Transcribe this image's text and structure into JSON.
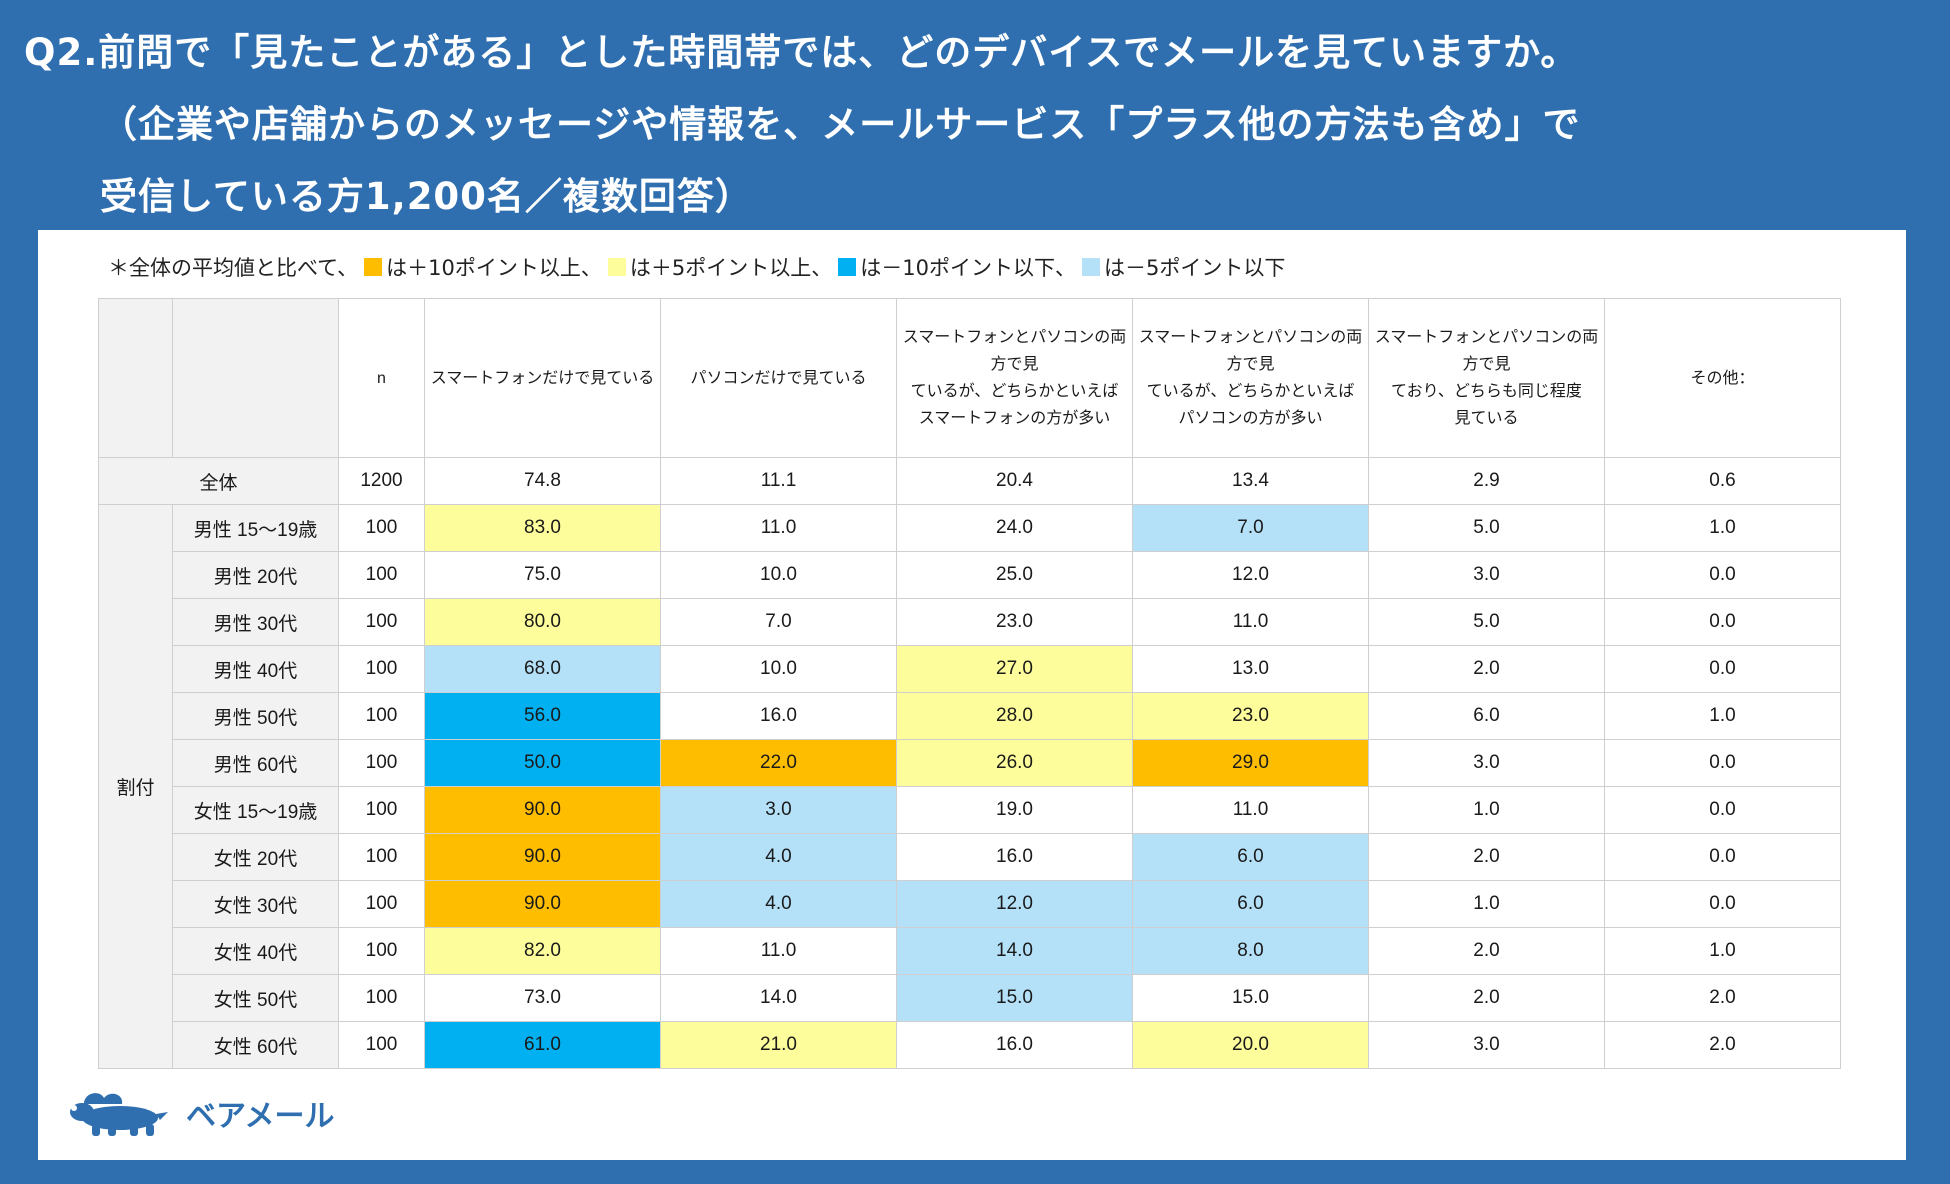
{
  "title": {
    "line1": "Q2.前問で「見たことがある」とした時間帯では、どのデバイスでメールを見ていますか。",
    "line2": "（企業や店舗からのメッセージや情報を、メールサービス「プラス他の方法も含め」で",
    "line3": "受信している方1,200名／複数回答）"
  },
  "legend": {
    "prefix": "＊全体の平均値と比べて、",
    "orange": "は＋10ポイント以上、",
    "yellow": "は＋5ポイント以上、",
    "blue": "は－10ポイント以下、",
    "lightblue": "は－5ポイント以下"
  },
  "colors": {
    "orange": "#ffbd00",
    "yellow": "#fefd9c",
    "blue": "#00b0f0",
    "lightblue": "#b4e0f8",
    "frame": "#2f6fb0"
  },
  "chart_data": {
    "type": "table",
    "columns": [
      {
        "lines": [
          "n"
        ]
      },
      {
        "lines": [
          "スマートフォンだけで見ている"
        ]
      },
      {
        "lines": [
          "パソコンだけで見ている"
        ]
      },
      {
        "lines": [
          "スマートフォンとパソコンの両方で見",
          "ているが、どちらかといえば",
          "スマートフォンの方が多い"
        ]
      },
      {
        "lines": [
          "スマートフォンとパソコンの両方で見",
          "ているが、どちらかといえば",
          "パソコンの方が多い"
        ]
      },
      {
        "lines": [
          "スマートフォンとパソコンの両方で見",
          "ており、どちらも同じ程度",
          "見ている"
        ]
      },
      {
        "lines": [
          "その他："
        ]
      }
    ],
    "total": {
      "label": "全体",
      "n": "1200",
      "values": [
        "74.8",
        "11.1",
        "20.4",
        "13.4",
        "2.9",
        "0.6"
      ]
    },
    "group_label": "割付",
    "rows": [
      {
        "label": "男性 15～19歳",
        "n": "100",
        "values": [
          "83.0",
          "11.0",
          "24.0",
          "7.0",
          "5.0",
          "1.0"
        ],
        "colors": [
          "yellow",
          "",
          "",
          "lightblue",
          "",
          ""
        ]
      },
      {
        "label": "男性 20代",
        "n": "100",
        "values": [
          "75.0",
          "10.0",
          "25.0",
          "12.0",
          "3.0",
          "0.0"
        ],
        "colors": [
          "",
          "",
          "",
          "",
          "",
          ""
        ]
      },
      {
        "label": "男性 30代",
        "n": "100",
        "values": [
          "80.0",
          "7.0",
          "23.0",
          "11.0",
          "5.0",
          "0.0"
        ],
        "colors": [
          "yellow",
          "",
          "",
          "",
          "",
          ""
        ]
      },
      {
        "label": "男性 40代",
        "n": "100",
        "values": [
          "68.0",
          "10.0",
          "27.0",
          "13.0",
          "2.0",
          "0.0"
        ],
        "colors": [
          "lightblue",
          "",
          "yellow",
          "",
          "",
          ""
        ]
      },
      {
        "label": "男性 50代",
        "n": "100",
        "values": [
          "56.0",
          "16.0",
          "28.0",
          "23.0",
          "6.0",
          "1.0"
        ],
        "colors": [
          "blue",
          "",
          "yellow",
          "yellow",
          "",
          ""
        ]
      },
      {
        "label": "男性 60代",
        "n": "100",
        "values": [
          "50.0",
          "22.0",
          "26.0",
          "29.0",
          "3.0",
          "0.0"
        ],
        "colors": [
          "blue",
          "orange",
          "yellow",
          "orange",
          "",
          ""
        ]
      },
      {
        "label": "女性 15～19歳",
        "n": "100",
        "values": [
          "90.0",
          "3.0",
          "19.0",
          "11.0",
          "1.0",
          "0.0"
        ],
        "colors": [
          "orange",
          "lightblue",
          "",
          "",
          "",
          ""
        ]
      },
      {
        "label": "女性 20代",
        "n": "100",
        "values": [
          "90.0",
          "4.0",
          "16.0",
          "6.0",
          "2.0",
          "0.0"
        ],
        "colors": [
          "orange",
          "lightblue",
          "",
          "lightblue",
          "",
          ""
        ]
      },
      {
        "label": "女性 30代",
        "n": "100",
        "values": [
          "90.0",
          "4.0",
          "12.0",
          "6.0",
          "1.0",
          "0.0"
        ],
        "colors": [
          "orange",
          "lightblue",
          "lightblue",
          "lightblue",
          "",
          ""
        ]
      },
      {
        "label": "女性 40代",
        "n": "100",
        "values": [
          "82.0",
          "11.0",
          "14.0",
          "8.0",
          "2.0",
          "1.0"
        ],
        "colors": [
          "yellow",
          "",
          "lightblue",
          "lightblue",
          "",
          ""
        ]
      },
      {
        "label": "女性 50代",
        "n": "100",
        "values": [
          "73.0",
          "14.0",
          "15.0",
          "15.0",
          "2.0",
          "2.0"
        ],
        "colors": [
          "",
          "",
          "lightblue",
          "",
          "",
          ""
        ]
      },
      {
        "label": "女性 60代",
        "n": "100",
        "values": [
          "61.0",
          "21.0",
          "16.0",
          "20.0",
          "3.0",
          "2.0"
        ],
        "colors": [
          "blue",
          "yellow",
          "",
          "yellow",
          "",
          ""
        ]
      }
    ]
  },
  "logo": {
    "icon": "bear-cloud-icon",
    "text": "ベアメール"
  }
}
